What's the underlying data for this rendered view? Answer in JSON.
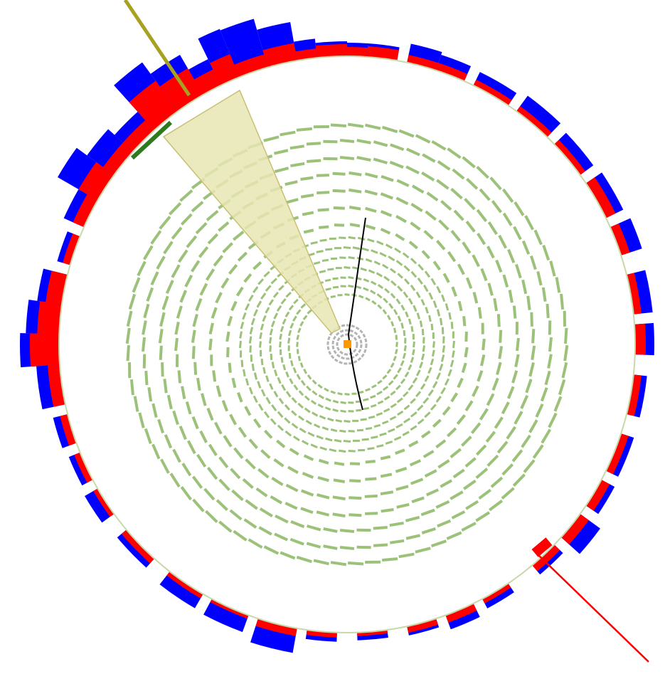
{
  "colors": {
    "background": "#ffffff",
    "em_deposit": "#ff0000",
    "had_deposit": "#0000ff",
    "tracker_module": "#9cc27a",
    "pixel_layer": "#b4b4b4",
    "calo_boundary": "#c8d8a8",
    "jet_cone_fill": "#e8e6b4",
    "jet_cone_edge": "#c8c070",
    "jet_line": "#a8a020",
    "electron_line": "#ff0000",
    "muon_cluster": "#2e7a1e",
    "track": "#000000",
    "vertex": "#ff9900"
  },
  "objects": {
    "jet": "jet-cone",
    "electron": "electron-track-line",
    "track": "charged-track",
    "vertex": "primary-vertex"
  }
}
